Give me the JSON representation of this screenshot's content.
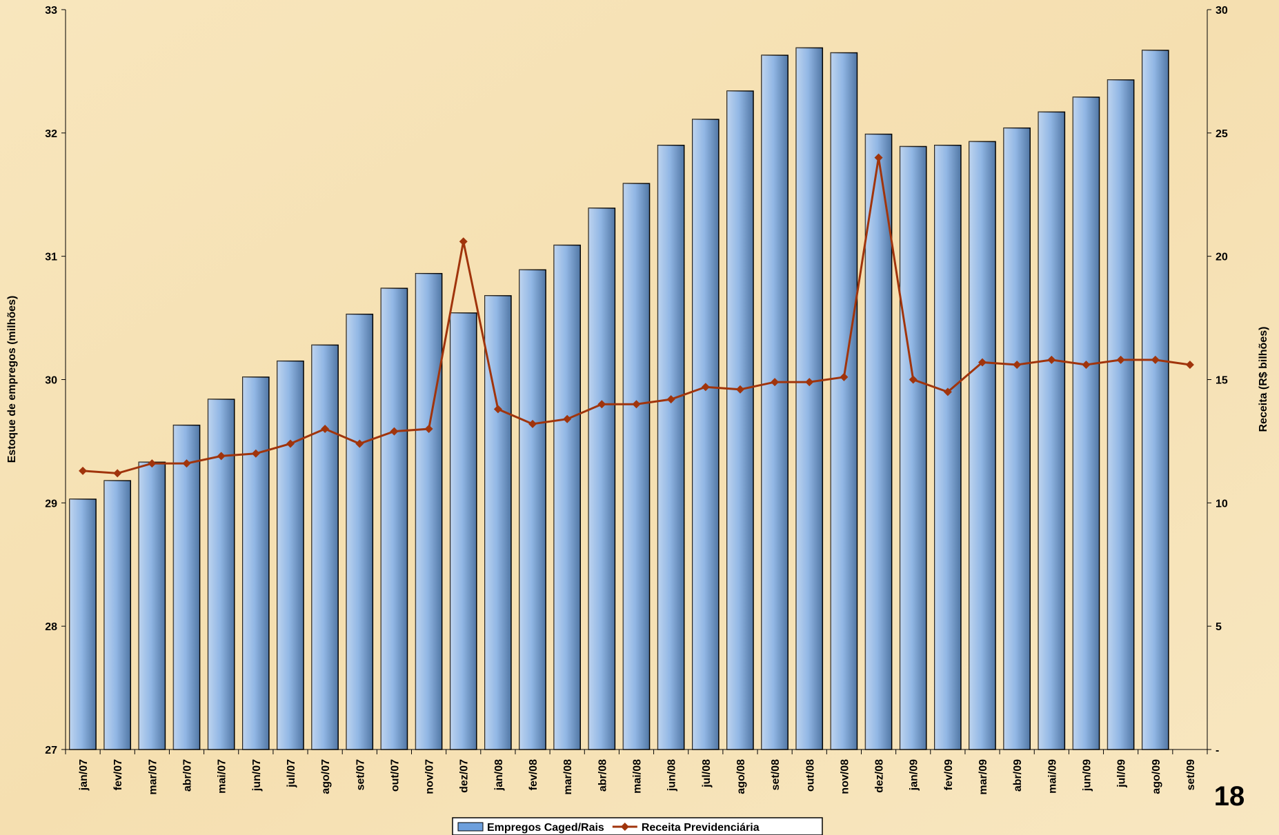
{
  "chart_data": {
    "type": "bar-line",
    "y_label": "Estoque de empregos (milhões)",
    "y2_label": "Receita (R$ bilhões)",
    "page_number": "18",
    "categories": [
      "jan/07",
      "fev/07",
      "mar/07",
      "abr/07",
      "mai/07",
      "jun/07",
      "jul/07",
      "ago/07",
      "set/07",
      "out/07",
      "nov/07",
      "dez/07",
      "jan/08",
      "fev/08",
      "mar/08",
      "abr/08",
      "mai/08",
      "jun/08",
      "jul/08",
      "ago/08",
      "set/08",
      "out/08",
      "nov/08",
      "dez/08",
      "jan/09",
      "fev/09",
      "mar/09",
      "abr/09",
      "mai/09",
      "jun/09",
      "jul/09",
      "ago/09",
      "set/09"
    ],
    "series": [
      {
        "name": "Empregos Caged/Rais",
        "type": "bar",
        "color": "#6d9fdc",
        "values": [
          29.03,
          29.18,
          29.33,
          29.63,
          29.84,
          30.02,
          30.15,
          30.28,
          30.53,
          30.74,
          30.86,
          30.54,
          30.68,
          30.89,
          31.09,
          31.39,
          31.59,
          31.9,
          32.11,
          32.34,
          32.63,
          32.69,
          32.65,
          31.99,
          31.89,
          31.9,
          31.93,
          32.04,
          32.17,
          32.29,
          32.43,
          32.67,
          null
        ]
      },
      {
        "name": "Receita Previdenciária",
        "type": "line",
        "axis": "y2",
        "color": "#a0340c",
        "values": [
          11.3,
          11.2,
          11.6,
          11.6,
          11.9,
          12.0,
          12.4,
          13.0,
          12.4,
          12.9,
          13.0,
          20.6,
          13.8,
          13.2,
          13.4,
          14.0,
          14.0,
          14.2,
          14.7,
          14.6,
          14.9,
          14.9,
          15.1,
          24.0,
          15.0,
          14.5,
          15.7,
          15.6,
          15.8,
          15.6,
          15.8,
          15.8,
          15.6
        ]
      }
    ],
    "ylim": [
      27,
      33
    ],
    "yticks": [
      27,
      28,
      29,
      30,
      31,
      32,
      33
    ],
    "y2lim": [
      0,
      30
    ],
    "y2ticks": [
      {
        "value": 0,
        "label": "-"
      },
      5,
      10,
      15,
      20,
      25,
      30
    ]
  }
}
